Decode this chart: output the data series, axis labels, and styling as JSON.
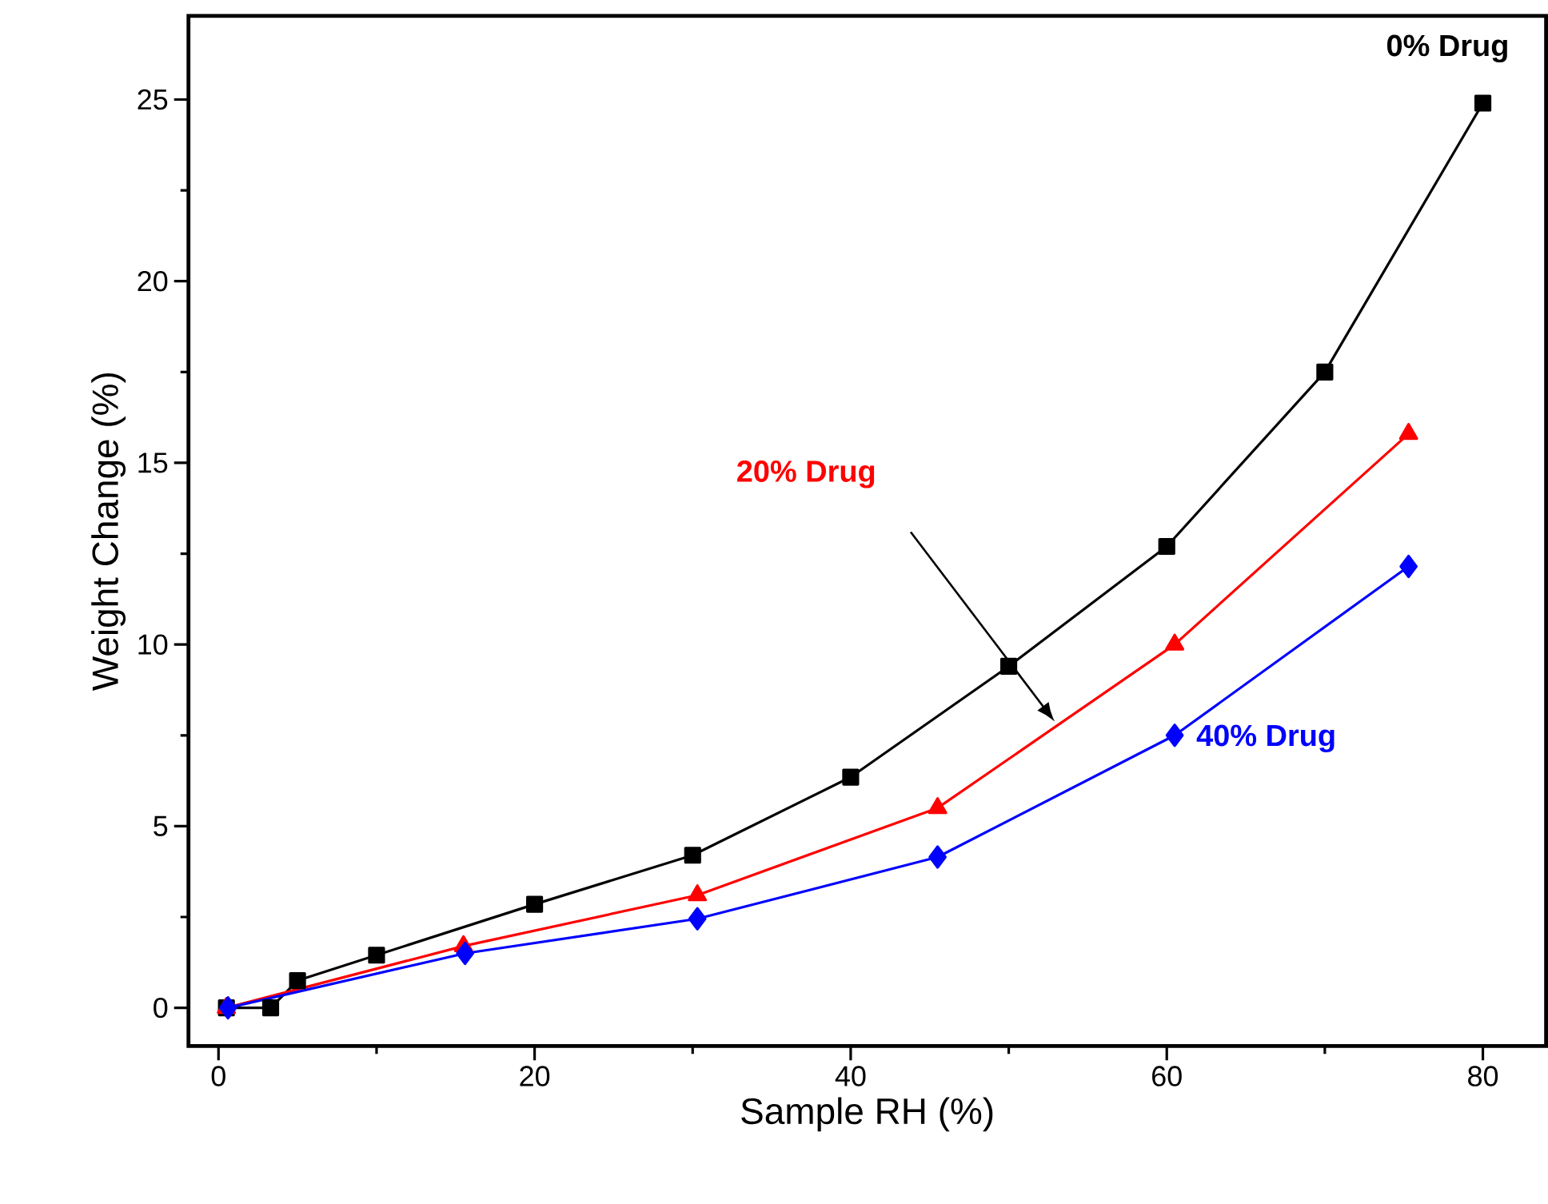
{
  "chart_data": {
    "type": "line",
    "xlabel": "Sample RH (%)",
    "ylabel": "Weight Change (%)",
    "xlim": [
      -1.9,
      84
    ],
    "ylim": [
      -1.05,
      27.3
    ],
    "xticks": [
      0,
      20,
      40,
      60,
      80
    ],
    "yticks": [
      0,
      5,
      10,
      15,
      20,
      25
    ],
    "grid": false,
    "series": [
      {
        "color": "#000000",
        "marker": "square",
        "x": [
          0.5,
          3.3,
          5,
          10,
          20,
          30,
          40,
          50,
          60,
          70,
          80
        ],
        "values": [
          0,
          0,
          0.75,
          1.45,
          2.85,
          4.2,
          6.35,
          9.4,
          12.7,
          17.5,
          24.9
        ]
      },
      {
        "color": "#ff0000",
        "marker": "triangle",
        "x": [
          0.5,
          15.5,
          30.3,
          45.5,
          60.5,
          75.3
        ],
        "values": [
          0,
          1.7,
          3.1,
          5.5,
          10,
          15.8
        ]
      },
      {
        "color": "#0000ff",
        "marker": "diamond",
        "x": [
          0.6,
          15.6,
          30.3,
          45.5,
          60.5,
          75.3
        ],
        "values": [
          0,
          1.5,
          2.45,
          4.15,
          7.5,
          12.15
        ]
      }
    ],
    "annotations": [
      {
        "text": "0% Drug",
        "x": 80,
        "y": 24.9
      },
      "20% Drug",
      {
        "text": "40% Drug",
        "x": 60.5,
        "y": 7.5
      }
    ]
  }
}
